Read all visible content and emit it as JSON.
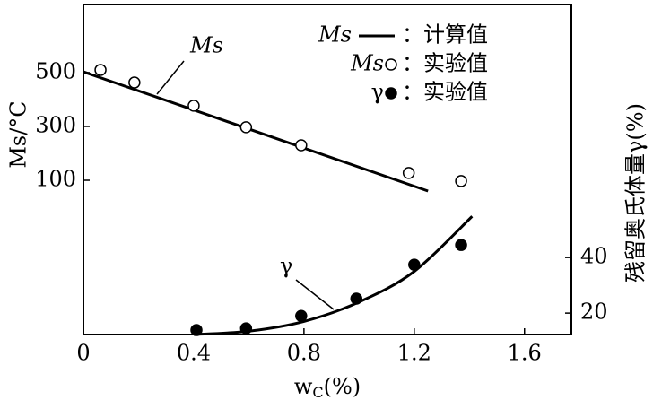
{
  "chart_data": {
    "type": "line",
    "xlabel": {
      "main": "w",
      "sub": "C",
      "unit": "(%)"
    },
    "ylabel": "Ms/°C",
    "y2label": "残留奥氏体量γ(%)",
    "xlim": [
      0,
      1.77
    ],
    "xticks": [
      0,
      0.4,
      0.8,
      1.2,
      1.6
    ],
    "ylim": [
      -473,
      753
    ],
    "yticks": [
      100,
      300,
      500
    ],
    "y2lim": [
      12.3,
      131
    ],
    "y2ticks": [
      20,
      40
    ],
    "annotations": [
      "Ms",
      "γ"
    ],
    "series": [
      {
        "name": "：计算值",
        "symbol_text": "Ms",
        "style": "line",
        "color": "#000000",
        "x": [
          0,
          1.25
        ],
        "values": [
          503,
          60
        ]
      },
      {
        "name": "：实验值",
        "symbol_text": "Ms",
        "style": "open",
        "color": "#000000",
        "x": [
          0.062,
          0.185,
          0.4,
          0.59,
          0.79,
          1.18,
          1.37
        ],
        "values": [
          510,
          463,
          377,
          297,
          230,
          127,
          97
        ]
      },
      {
        "name": "：实验值",
        "symbol_text": "γ",
        "style": "filled",
        "color": "#000000",
        "axis": "y2",
        "x": [
          0.41,
          0.59,
          0.79,
          0.99,
          1.2,
          1.37
        ],
        "values": [
          13.9,
          14.5,
          19.0,
          25.2,
          37.4,
          44.5
        ]
      },
      {
        "style": "line",
        "color": "#000000",
        "axis": "y2",
        "x": [
          0.4,
          0.6,
          0.8,
          1.0,
          1.2,
          1.41
        ],
        "values": [
          12.3,
          13.5,
          17,
          24,
          35,
          54.8
        ]
      }
    ]
  }
}
